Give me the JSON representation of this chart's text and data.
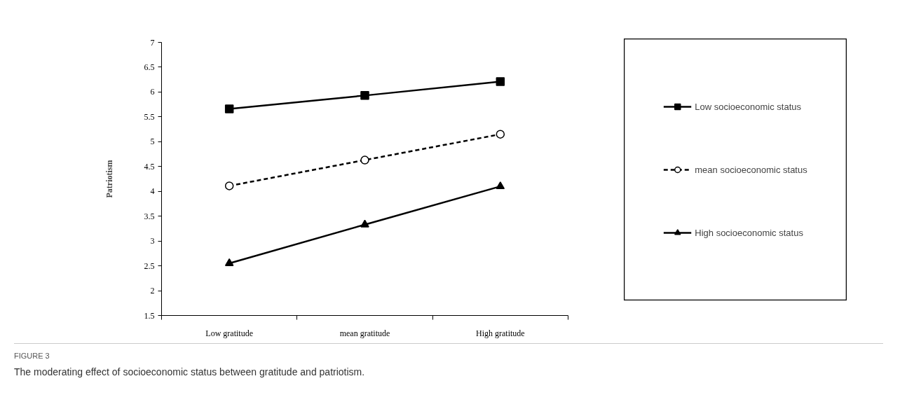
{
  "chart_data": {
    "type": "line",
    "ylabel": "Patriotism",
    "categories": [
      "Low gratitude",
      "mean gratitude",
      "High gratitude"
    ],
    "series": [
      {
        "name": "Low socioeconomic status",
        "color": "#000000",
        "marker": "square",
        "line_style": "solid",
        "values": [
          5.66,
          5.93,
          6.21
        ]
      },
      {
        "name": "mean socioeconomic status",
        "color": "#000000",
        "marker": "circle",
        "line_style": "dashed",
        "values": [
          4.11,
          4.63,
          5.15
        ]
      },
      {
        "name": "High socioeconomic status",
        "color": "#000000",
        "marker": "triangle",
        "line_style": "solid",
        "values": [
          2.55,
          3.33,
          4.1
        ]
      }
    ],
    "ylim": [
      1.5,
      7
    ],
    "yticks": [
      1.5,
      2,
      2.5,
      3,
      3.5,
      4,
      4.5,
      5,
      5.5,
      6,
      6.5,
      7
    ],
    "grid": false,
    "legend": "right",
    "annotations": [
      "FIGURE 3",
      "The moderating effect of socioeconomic status between gratitude and patriotism."
    ]
  }
}
